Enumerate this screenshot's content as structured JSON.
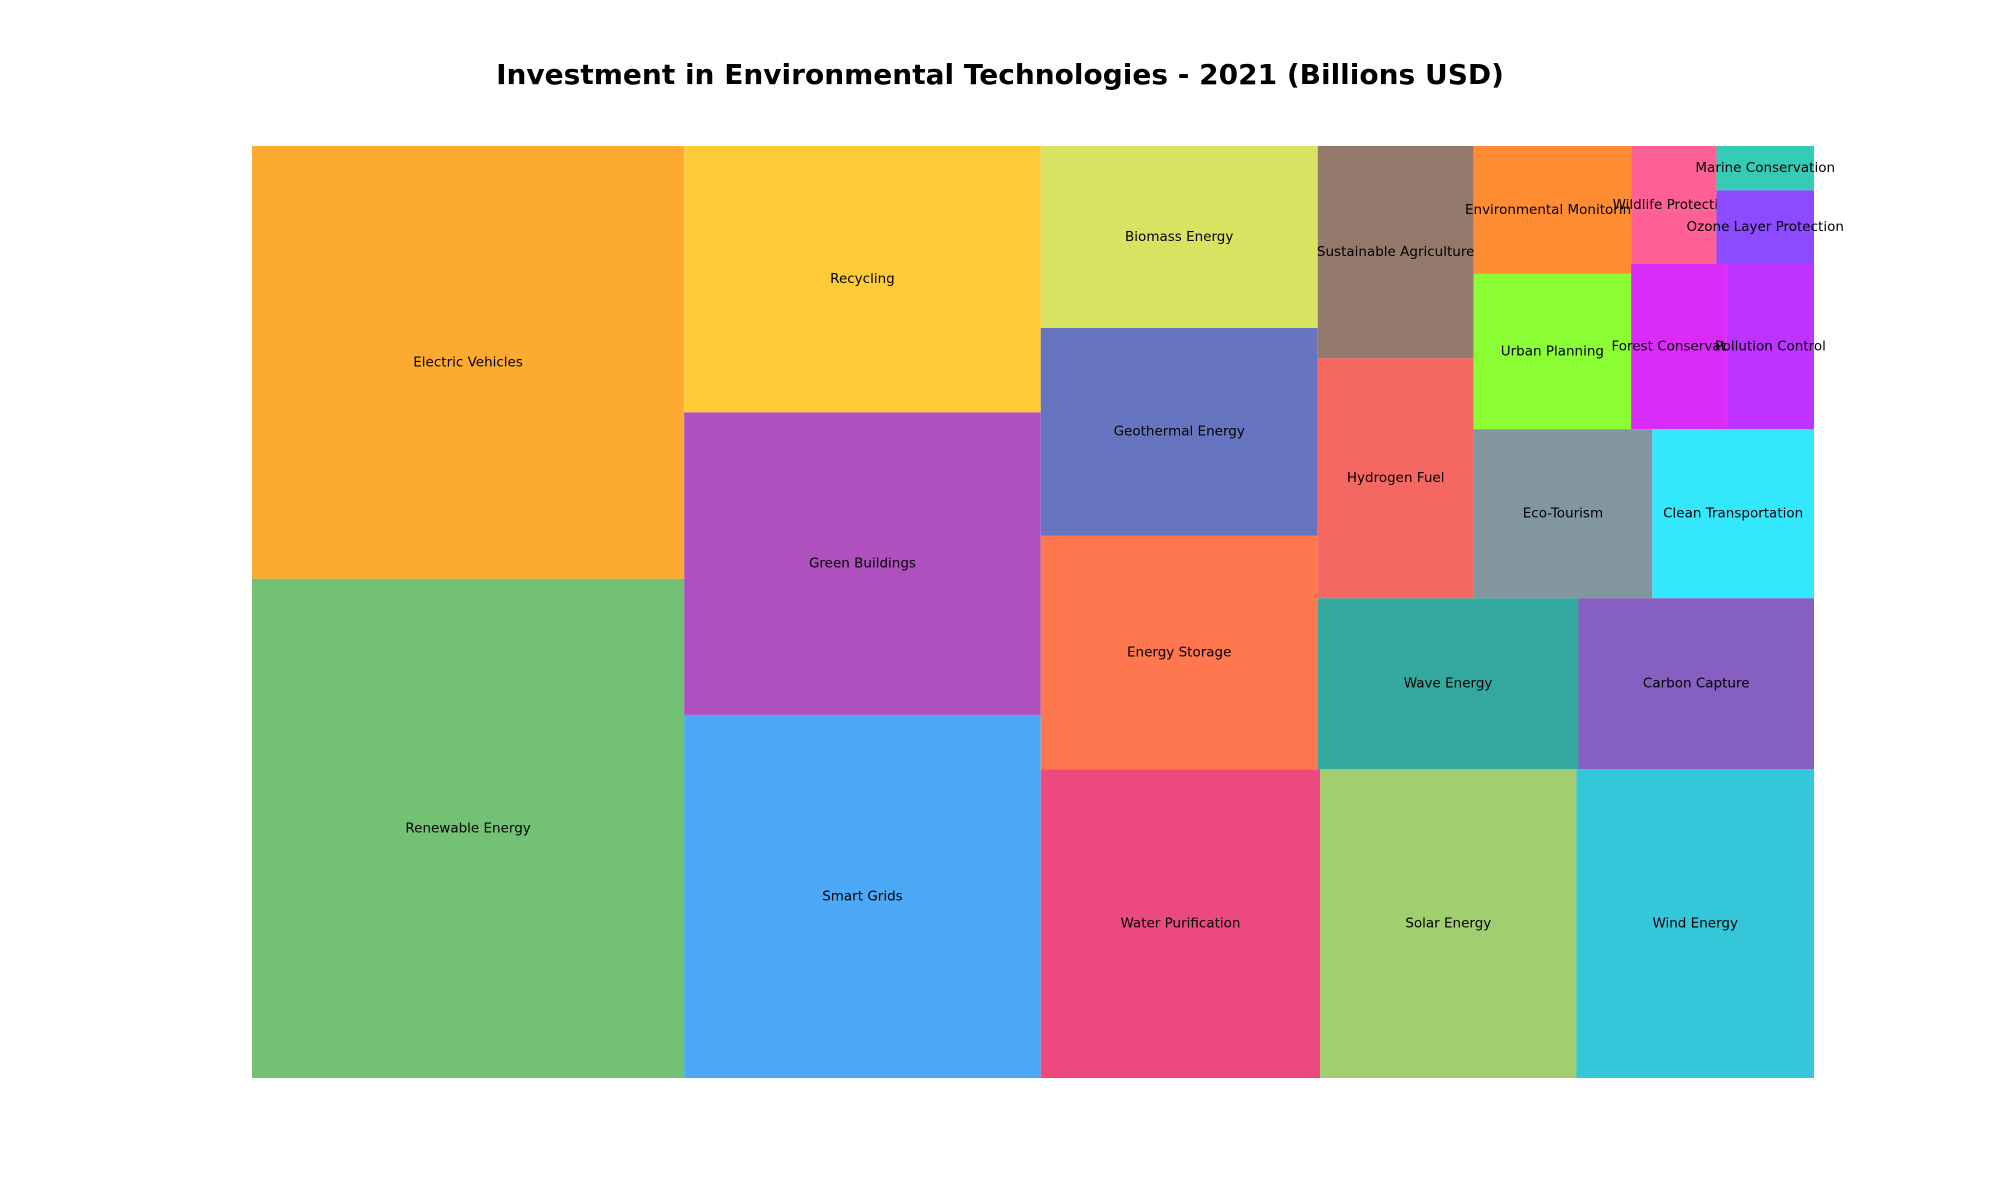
{
  "chart_data": {
    "type": "treemap",
    "title": "Investment in Environmental Technologies - 2021 (Billions USD)",
    "xlabel": "",
    "ylabel": "",
    "grid": false,
    "legend": "none",
    "unit": "Billions USD",
    "items": [
      {
        "label": "Renewable Energy",
        "value": 150,
        "color": "#72C174"
      },
      {
        "label": "Electric Vehicles",
        "value": 130,
        "color": "#FDAA33"
      },
      {
        "label": "Smart Grids",
        "value": 90,
        "color": "#4DA9F5"
      },
      {
        "label": "Green Buildings",
        "value": 75,
        "color": "#AE51BF"
      },
      {
        "label": "Recycling",
        "value": 66,
        "color": "#FECB38"
      },
      {
        "label": "Water Purification",
        "value": 60,
        "color": "#EC4A7E"
      },
      {
        "label": "Solar Energy",
        "value": 55,
        "color": "#A1CE6F"
      },
      {
        "label": "Wind Energy",
        "value": 51,
        "color": "#34C7DA"
      },
      {
        "label": "Energy Storage",
        "value": 45,
        "color": "#FE774E"
      },
      {
        "label": "Geothermal Energy",
        "value": 40,
        "color": "#6775C1"
      },
      {
        "label": "Biomass Energy",
        "value": 35,
        "color": "#D8E461"
      },
      {
        "label": "Wave Energy",
        "value": 31,
        "color": "#33A89E"
      },
      {
        "label": "Carbon Capture",
        "value": 28,
        "color": "#855FC2"
      },
      {
        "label": "Hydrogen Fuel",
        "value": 26,
        "color": "#F56761"
      },
      {
        "label": "Sustainable Agriculture",
        "value": 23,
        "color": "#94796D"
      },
      {
        "label": "Eco-Tourism",
        "value": 21,
        "color": "#8296A0"
      },
      {
        "label": "Clean Transportation",
        "value": 19,
        "color": "#33E8FD"
      },
      {
        "label": "Urban Planning",
        "value": 17,
        "color": "#8BFE33"
      },
      {
        "label": "Environmental Monitoring",
        "value": 14,
        "color": "#FF8C33"
      },
      {
        "label": "Forest Conservation",
        "value": 11,
        "color": "#DB2BF9"
      },
      {
        "label": "Pollution Control",
        "value": 10,
        "color": "#BD33FF"
      },
      {
        "label": "Wildlife Protection",
        "value": 7,
        "color": "#FF6195"
      },
      {
        "label": "Ozone Layer Protection",
        "value": 5,
        "color": "#8C4BFF"
      },
      {
        "label": "Marine Conservation",
        "value": 3,
        "color": "#36CBB7"
      }
    ]
  }
}
